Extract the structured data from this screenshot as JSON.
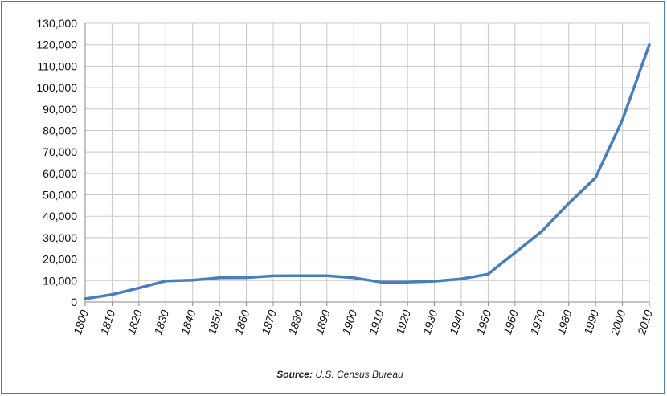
{
  "chart_data": {
    "type": "line",
    "title": "",
    "xlabel": "",
    "ylabel": "",
    "x": [
      1800,
      1810,
      1820,
      1830,
      1840,
      1850,
      1860,
      1870,
      1880,
      1890,
      1900,
      1910,
      1920,
      1930,
      1940,
      1950,
      1960,
      1970,
      1980,
      1990,
      2000,
      2010
    ],
    "series": [
      {
        "name": "",
        "color": "#4a7ebb",
        "values": [
          1500,
          3500,
          6500,
          9800,
          10200,
          11300,
          11400,
          12200,
          12300,
          12300,
          11300,
          9300,
          9300,
          9700,
          10800,
          13000,
          23000,
          33000,
          46000,
          58000,
          85000,
          120000
        ]
      }
    ],
    "ylim": [
      0,
      130000
    ],
    "yticks": [
      0,
      10000,
      20000,
      30000,
      40000,
      50000,
      60000,
      70000,
      80000,
      90000,
      100000,
      110000,
      120000,
      130000
    ],
    "ytick_labels": [
      "0",
      "10,000",
      "20,000",
      "30,000",
      "40,000",
      "50,000",
      "60,000",
      "70,000",
      "80,000",
      "90,000",
      "100,000",
      "110,000",
      "120,000",
      "130,000"
    ],
    "xtick_labels": [
      "1800",
      "1810",
      "1820",
      "1830",
      "1840",
      "1850",
      "1860",
      "1870",
      "1880",
      "1890",
      "1900",
      "1910",
      "1920",
      "1930",
      "1940",
      "1950",
      "1960",
      "1970",
      "1980",
      "1990",
      "2000",
      "2010"
    ],
    "grid": true,
    "legend": "none"
  },
  "source": {
    "label": "Source:",
    "text": "U.S. Census Bureau"
  },
  "colors": {
    "line": "#4a7ebb",
    "grid": "#c8c8c8",
    "axis": "#888888",
    "border": "#4a7ebb"
  }
}
